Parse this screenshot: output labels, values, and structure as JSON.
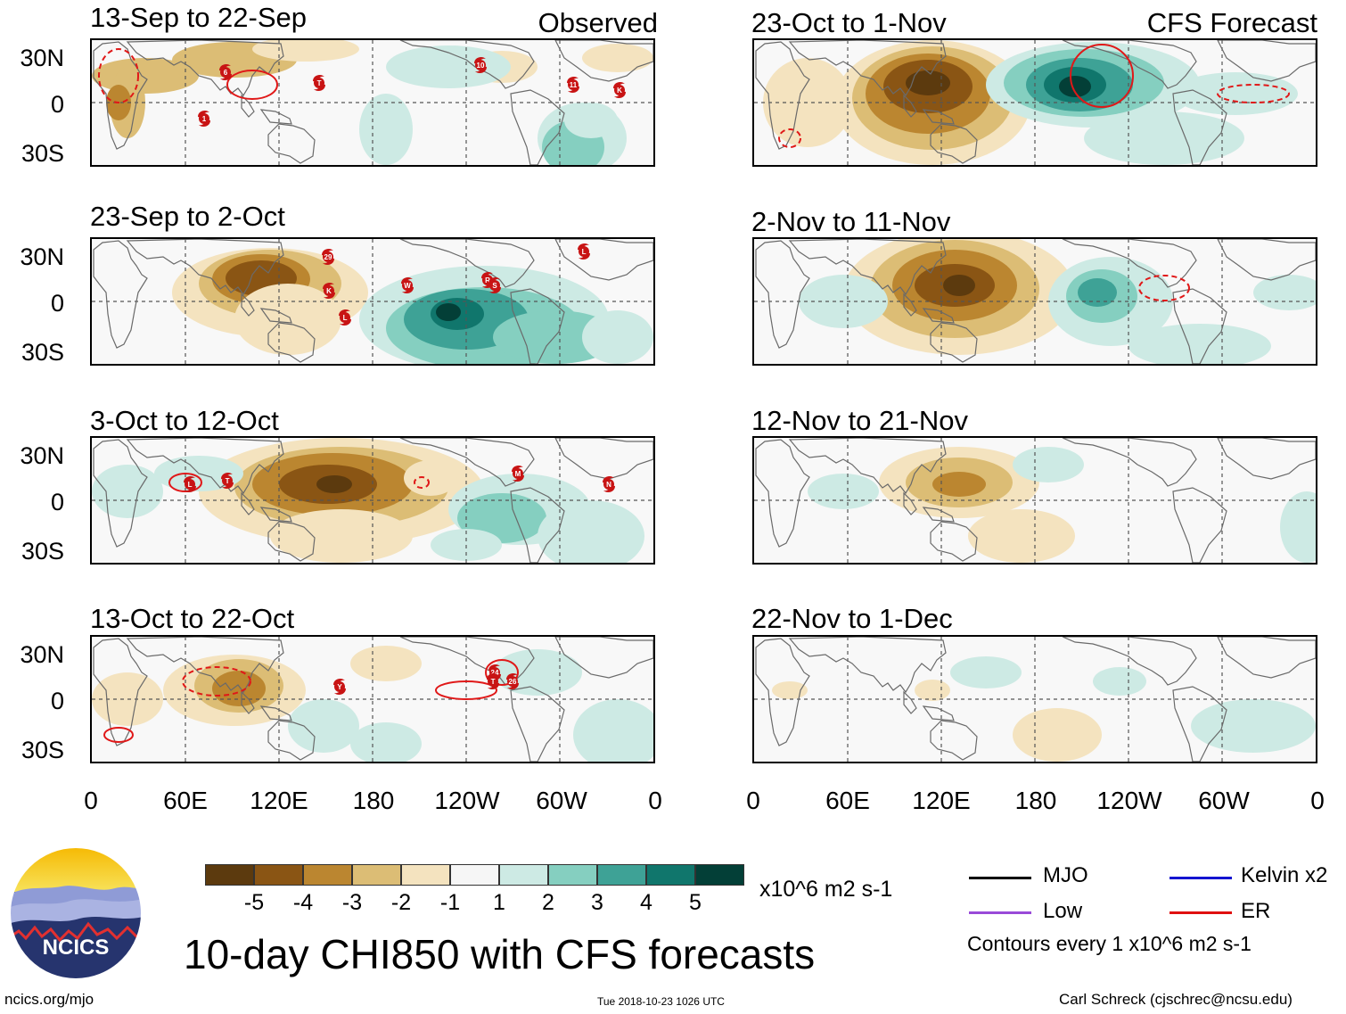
{
  "header": {
    "observed_label": "Observed",
    "forecast_label": "CFS Forecast"
  },
  "panels": [
    {
      "title": "13-Sep to 22-Sep",
      "type": "observed"
    },
    {
      "title": "23-Sep to 2-Oct",
      "type": "observed"
    },
    {
      "title": "3-Oct to 12-Oct",
      "type": "observed"
    },
    {
      "title": "13-Oct to 22-Oct",
      "type": "observed"
    },
    {
      "title": "23-Oct to 1-Nov",
      "type": "forecast"
    },
    {
      "title": "2-Nov to 11-Nov",
      "type": "forecast"
    },
    {
      "title": "12-Nov to 21-Nov",
      "type": "forecast"
    },
    {
      "title": "22-Nov to 1-Dec",
      "type": "forecast"
    }
  ],
  "lat_labels": [
    "30N",
    "0",
    "30S"
  ],
  "lon_labels": [
    "0",
    "60E",
    "120E",
    "180",
    "120W",
    "60W",
    "0"
  ],
  "colorbar": {
    "colors": [
      "#5c3a0e",
      "#8a5514",
      "#bb8630",
      "#dcbd75",
      "#f4e3bf",
      "#f6f6f6",
      "#cdeae4",
      "#85cfc0",
      "#3ea296",
      "#10766c",
      "#033f37"
    ],
    "labels": [
      "-5",
      "-4",
      "-3",
      "-2",
      "-1",
      "1",
      "2",
      "3",
      "4",
      "5"
    ],
    "units": "x10^6 m2 s-1"
  },
  "legend": {
    "items": [
      {
        "label": "MJO",
        "color": "#000000"
      },
      {
        "label": "Kelvin x2",
        "color": "#1414d0"
      },
      {
        "label": "Low",
        "color": "#9a4ad8"
      },
      {
        "label": "ER",
        "color": "#e01010"
      }
    ],
    "note": "Contours every 1 x10^6 m2 s-1"
  },
  "logo": {
    "text": "NCICS"
  },
  "title": "10-day CHI850 with CFS forecasts",
  "footer": {
    "url": "ncics.org/mjo",
    "timestamp": "Tue 2018-10-23 1026 UTC",
    "author": "Carl Schreck (cjschrec@ncsu.edu)"
  },
  "storms": [
    [
      "6",
      "T",
      "1",
      "10",
      "11",
      "K"
    ],
    [
      "29",
      "K",
      "L",
      "W",
      "R",
      "S",
      "L"
    ],
    [
      "L",
      "T",
      "M",
      "N"
    ],
    [
      "Y",
      "24",
      "T",
      "26"
    ],
    [],
    [],
    [],
    []
  ]
}
